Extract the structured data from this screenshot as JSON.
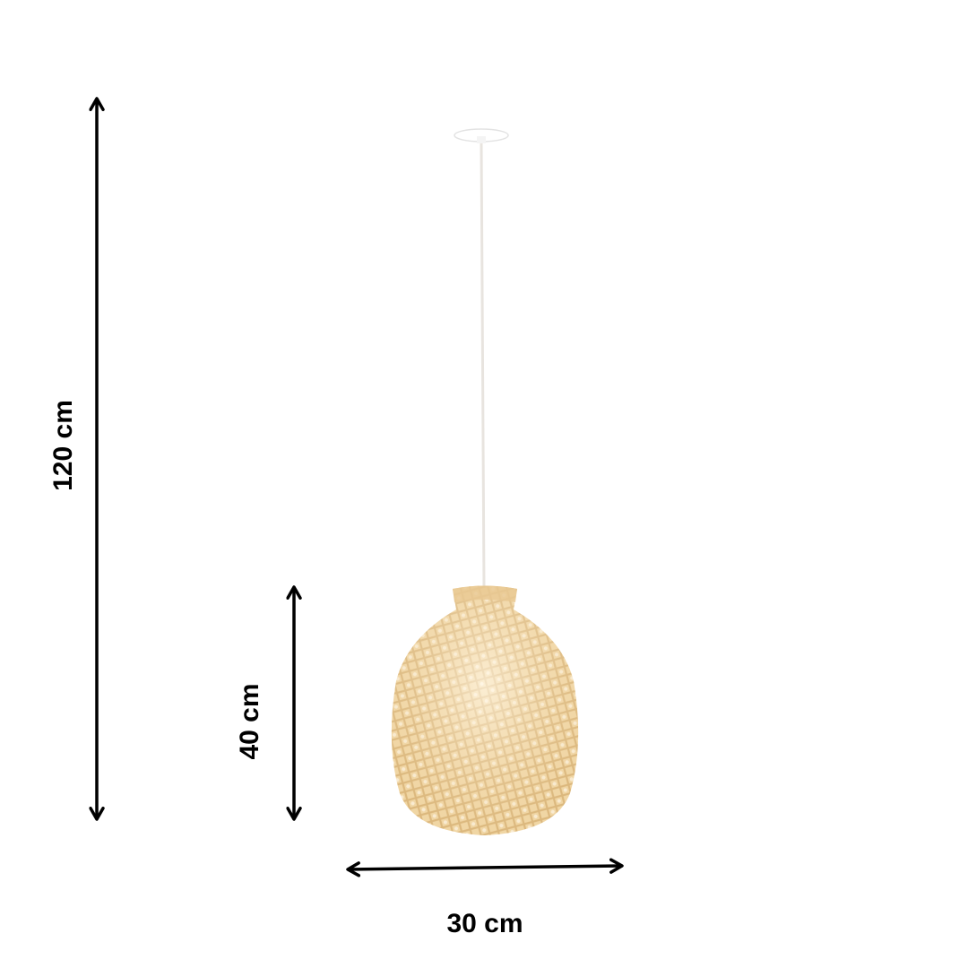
{
  "product": {
    "name_icon": "pendant-lamp-rattan",
    "colors": {
      "shade": "#f2d7a4",
      "shade_dark": "#d9b57a",
      "canopy": "#ffffff",
      "arrow": "#000000"
    }
  },
  "dimensions": {
    "total_height": "120 cm",
    "shade_height": "40 cm",
    "shade_width": "30 cm"
  }
}
